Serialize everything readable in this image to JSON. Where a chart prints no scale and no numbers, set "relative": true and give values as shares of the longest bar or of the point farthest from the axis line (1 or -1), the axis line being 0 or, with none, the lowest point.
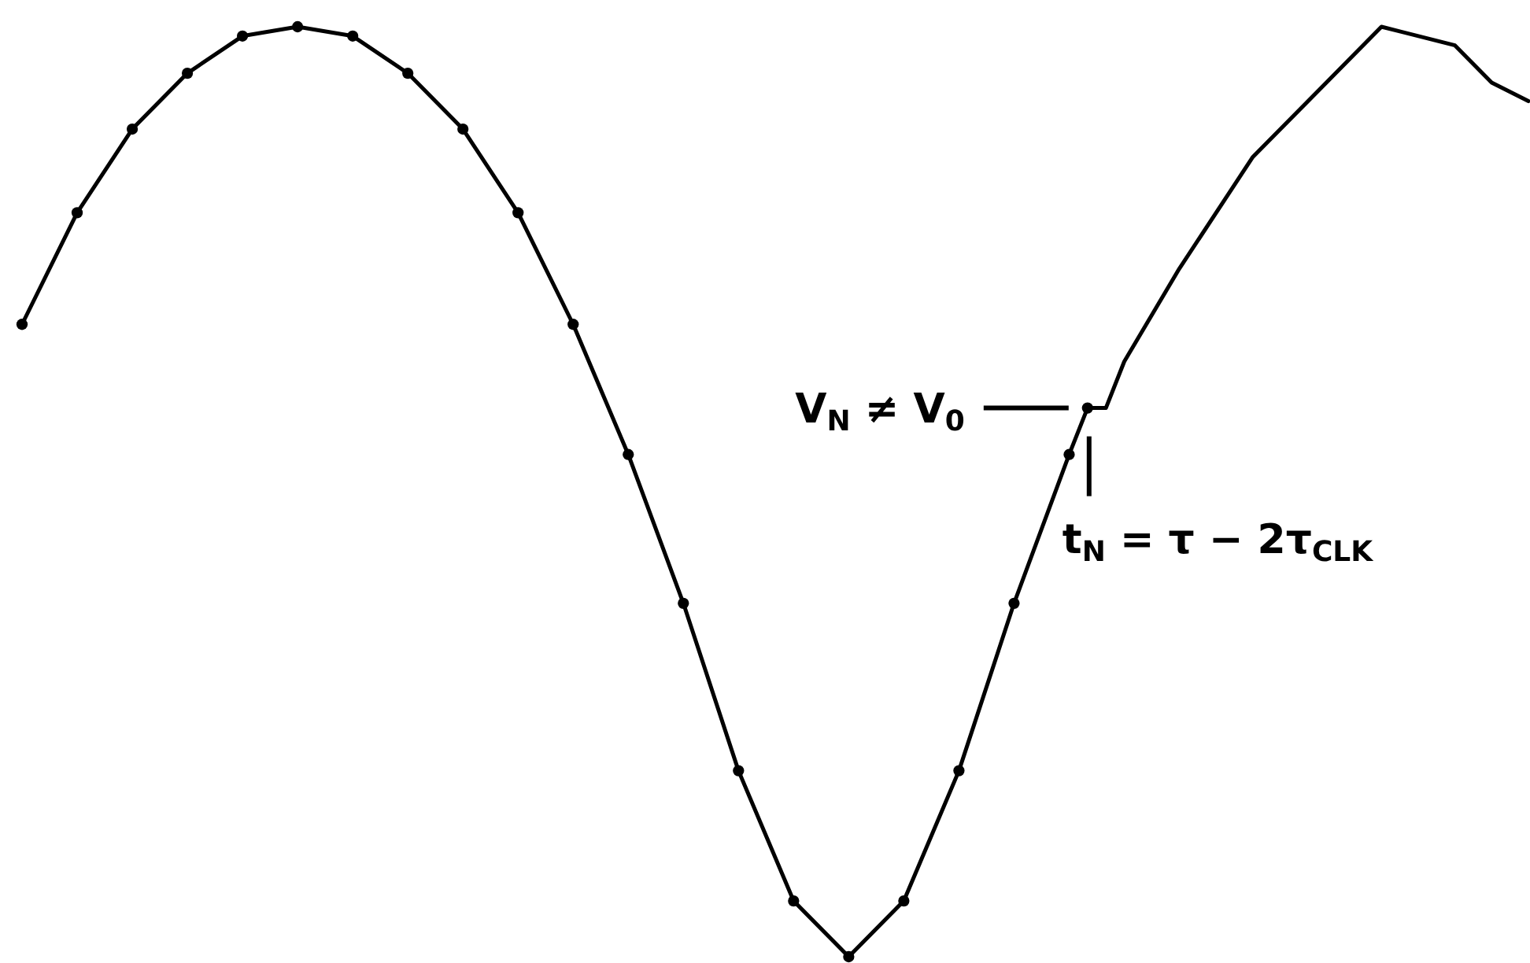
{
  "chart_data": {
    "type": "line",
    "relative": true,
    "categories": [
      null,
      null,
      null,
      null,
      null,
      null,
      null,
      null,
      null,
      null,
      null,
      null,
      null,
      null,
      null,
      null,
      null,
      null,
      null,
      null,
      null,
      null,
      null,
      null,
      null,
      null,
      null,
      null,
      null,
      null,
      null,
      null,
      null,
      null,
      null,
      null,
      null,
      null,
      null,
      null,
      null,
      null,
      null,
      null,
      null,
      null,
      null,
      null,
      null,
      null,
      null,
      null,
      null,
      null,
      null,
      null,
      null,
      null,
      null,
      null,
      null,
      null,
      null,
      null,
      null,
      null,
      null,
      null,
      null,
      null,
      null,
      null,
      null,
      null,
      null,
      null,
      null,
      null,
      null,
      null,
      null,
      null,
      null
    ],
    "series": [
      {
        "color": "#000000",
        "marker": "circle",
        "values": [
          0.68,
          null,
          null,
          0.8,
          null,
          null,
          0.89,
          null,
          null,
          0.95,
          null,
          null,
          0.99,
          null,
          null,
          1.0,
          null,
          null,
          0.99,
          null,
          null,
          0.95,
          null,
          null,
          0.89,
          null,
          null,
          0.8,
          null,
          null,
          0.68,
          null,
          null,
          0.54,
          null,
          null,
          0.38,
          null,
          null,
          0.2,
          null,
          null,
          0.06,
          null,
          null,
          0.0,
          null,
          null,
          0.06,
          null,
          null,
          0.2,
          null,
          null,
          0.38,
          null,
          null,
          0.54,
          0.59,
          null,
          null,
          null,
          null,
          null,
          null,
          null,
          null,
          null,
          null,
          null,
          null,
          null,
          null,
          null,
          null,
          null,
          null,
          null,
          null,
          null,
          null,
          null,
          null
        ]
      },
      {
        "color": "#000000",
        "marker": "none",
        "values": [
          null,
          null,
          null,
          null,
          null,
          null,
          null,
          null,
          null,
          null,
          null,
          null,
          null,
          null,
          null,
          null,
          null,
          null,
          null,
          null,
          null,
          null,
          null,
          null,
          null,
          null,
          null,
          null,
          null,
          null,
          null,
          null,
          null,
          null,
          null,
          null,
          null,
          null,
          null,
          null,
          null,
          null,
          null,
          null,
          null,
          null,
          null,
          null,
          null,
          null,
          null,
          null,
          null,
          null,
          null,
          null,
          null,
          null,
          0.59,
          0.59,
          0.64,
          null,
          null,
          0.74,
          null,
          null,
          null,
          0.86,
          null,
          null,
          null,
          0.94,
          null,
          null,
          1.0,
          null,
          null,
          null,
          0.98,
          null,
          0.94,
          null,
          0.92
        ]
      }
    ],
    "annotations": [
      "V$_{N}$ ≠ V$_{0}$",
      "t$_{N}$ = τ − 2τ$_{CLK}$"
    ]
  }
}
